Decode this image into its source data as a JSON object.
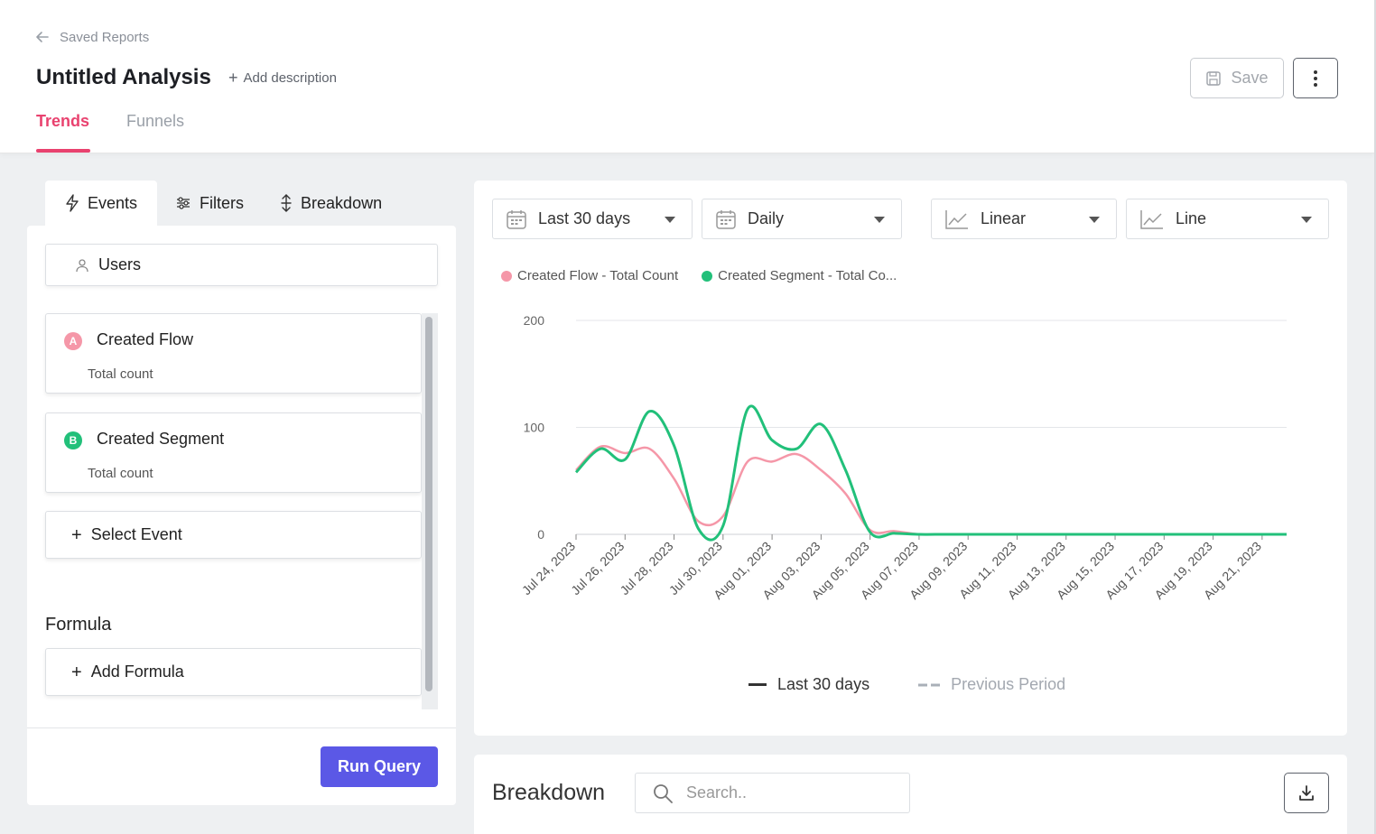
{
  "header": {
    "back_label": "Saved Reports",
    "title": "Untitled Analysis",
    "add_description": "Add description",
    "save_label": "Save",
    "tabs": [
      {
        "label": "Trends"
      },
      {
        "label": "Funnels"
      }
    ]
  },
  "left": {
    "tabs": [
      {
        "label": "Events"
      },
      {
        "label": "Filters"
      },
      {
        "label": "Breakdown"
      }
    ],
    "users_label": "Users",
    "events": [
      {
        "badge": "A",
        "name": "Created Flow",
        "aggregation": "Total count",
        "color": "#f597a8"
      },
      {
        "badge": "B",
        "name": "Created Segment",
        "aggregation": "Total count",
        "color": "#22c07a"
      }
    ],
    "select_event": "Select Event",
    "formula_title": "Formula",
    "add_formula": "Add Formula",
    "run_query": "Run Query"
  },
  "controls": {
    "date_range": "Last 30 days",
    "interval": "Daily",
    "scale": "Linear",
    "chart_type": "Line"
  },
  "legend": {
    "series": [
      {
        "label": "Created Flow - Total Count",
        "color": "#f597a8"
      },
      {
        "label": "Created Segment - Total Co...",
        "color": "#22c07a"
      }
    ],
    "current_period": "Last 30 days",
    "previous_period": "Previous Period"
  },
  "chart_data": {
    "type": "line",
    "x": [
      "Jul 24, 2023",
      "Jul 25, 2023",
      "Jul 26, 2023",
      "Jul 27, 2023",
      "Jul 28, 2023",
      "Jul 29, 2023",
      "Jul 30, 2023",
      "Jul 31, 2023",
      "Aug 01, 2023",
      "Aug 02, 2023",
      "Aug 03, 2023",
      "Aug 04, 2023",
      "Aug 05, 2023",
      "Aug 06, 2023",
      "Aug 07, 2023",
      "Aug 08, 2023",
      "Aug 09, 2023",
      "Aug 10, 2023",
      "Aug 11, 2023",
      "Aug 12, 2023",
      "Aug 13, 2023",
      "Aug 14, 2023",
      "Aug 15, 2023",
      "Aug 16, 2023",
      "Aug 17, 2023",
      "Aug 18, 2023",
      "Aug 19, 2023",
      "Aug 20, 2023",
      "Aug 21, 2023",
      "Aug 22, 2023"
    ],
    "tick_labels": [
      "Jul 24, 2023",
      "Jul 26, 2023",
      "Jul 28, 2023",
      "Jul 30, 2023",
      "Aug 01, 2023",
      "Aug 03, 2023",
      "Aug 05, 2023",
      "Aug 07, 2023",
      "Aug 09, 2023",
      "Aug 11, 2023",
      "Aug 13, 2023",
      "Aug 15, 2023",
      "Aug 17, 2023",
      "Aug 19, 2023",
      "Aug 21, 2023"
    ],
    "series": [
      {
        "name": "Created Flow - Total Count",
        "color": "#f597a8",
        "values": [
          60,
          82,
          76,
          80,
          52,
          12,
          17,
          68,
          68,
          75,
          60,
          38,
          4,
          3,
          0,
          0,
          0,
          0,
          0,
          0,
          0,
          0,
          0,
          0,
          0,
          0,
          0,
          0,
          0,
          0
        ]
      },
      {
        "name": "Created Segment - Total Count",
        "color": "#22c07a",
        "values": [
          58,
          80,
          70,
          115,
          83,
          5,
          8,
          117,
          88,
          80,
          103,
          60,
          2,
          1,
          0,
          0,
          0,
          0,
          0,
          0,
          0,
          0,
          0,
          0,
          0,
          0,
          0,
          0,
          0,
          0
        ]
      }
    ],
    "yticks": [
      0,
      100,
      200
    ],
    "ylim": [
      0,
      200
    ]
  },
  "breakdown": {
    "title": "Breakdown",
    "search_placeholder": "Search.."
  }
}
